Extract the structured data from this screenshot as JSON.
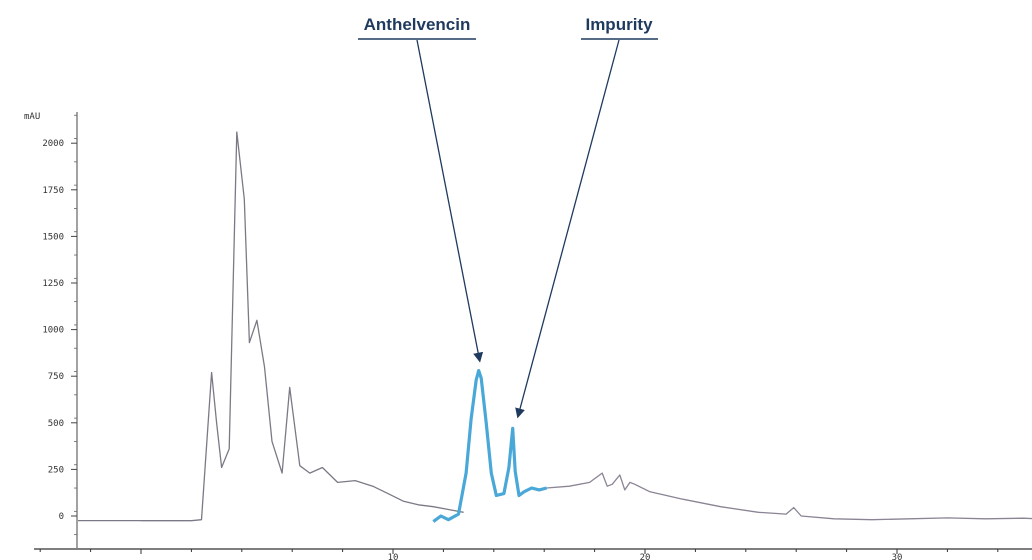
{
  "chart_data": {
    "type": "line",
    "title": "",
    "xlabel": "",
    "ylabel": "mAU",
    "xlim": [
      -2.5,
      37.5
    ],
    "ylim": [
      -100,
      2150
    ],
    "grid": false,
    "legend": "none",
    "y_ticks": [
      0,
      250,
      500,
      750,
      1000,
      1250,
      1500,
      1750,
      2000
    ],
    "y_tick_labels": [
      "0",
      "250",
      "500",
      "750",
      "1000",
      "1250",
      "1500",
      "1750",
      "2000"
    ],
    "x_ticks": [
      10,
      20,
      30
    ],
    "x_tick_labels": [
      "10",
      "20",
      "30"
    ],
    "annotations": [
      {
        "label": "Anthelvencin",
        "x": 13.4,
        "y": 780
      },
      {
        "label": "Impurity",
        "x": 14.8,
        "y": 470
      }
    ],
    "series": [
      {
        "color": "#7a7a86",
        "x": [
          0,
          0.8,
          1.6,
          2.0,
          2.4,
          2.8,
          3.0,
          3.2,
          3.5,
          3.8,
          4.1,
          4.3,
          4.6,
          4.9,
          5.2,
          5.6,
          5.9,
          6.3,
          6.7,
          7.2,
          7.8,
          8.5,
          9.2,
          9.8,
          10.4,
          11.0,
          11.6,
          12.2,
          12.8
        ],
        "y": [
          -25,
          -25,
          -25,
          -25,
          -20,
          770,
          500,
          260,
          360,
          2060,
          1700,
          930,
          1050,
          800,
          400,
          230,
          690,
          270,
          230,
          260,
          180,
          190,
          160,
          120,
          80,
          60,
          50,
          35,
          20
        ]
      },
      {
        "color": "#4aa8d8",
        "x": [
          11.6,
          11.9,
          12.2,
          12.6,
          12.9,
          13.1,
          13.3,
          13.4,
          13.5,
          13.7,
          13.9,
          14.1,
          14.4,
          14.6,
          14.75,
          14.85,
          15.0,
          15.2,
          15.5,
          15.8,
          16.1
        ],
        "y": [
          -30,
          0,
          -20,
          10,
          230,
          520,
          730,
          780,
          740,
          500,
          230,
          110,
          120,
          260,
          470,
          240,
          110,
          130,
          150,
          140,
          150
        ]
      },
      {
        "color": "#8a8494",
        "x": [
          16.1,
          17.0,
          17.8,
          18.3,
          18.5,
          18.7,
          19.0,
          19.2,
          19.4,
          19.6,
          20.2,
          21.5,
          23.0,
          24.5,
          25.6,
          25.9,
          26.2,
          27.5,
          29.0,
          30.5,
          32.0,
          33.5,
          35.0,
          35.6,
          35.9,
          36.3,
          37.5
        ],
        "y": [
          150,
          160,
          180,
          230,
          160,
          170,
          220,
          140,
          180,
          170,
          130,
          90,
          50,
          20,
          10,
          45,
          0,
          -15,
          -20,
          -15,
          -10,
          -15,
          -12,
          -15,
          -5,
          -10,
          -10
        ]
      }
    ]
  }
}
